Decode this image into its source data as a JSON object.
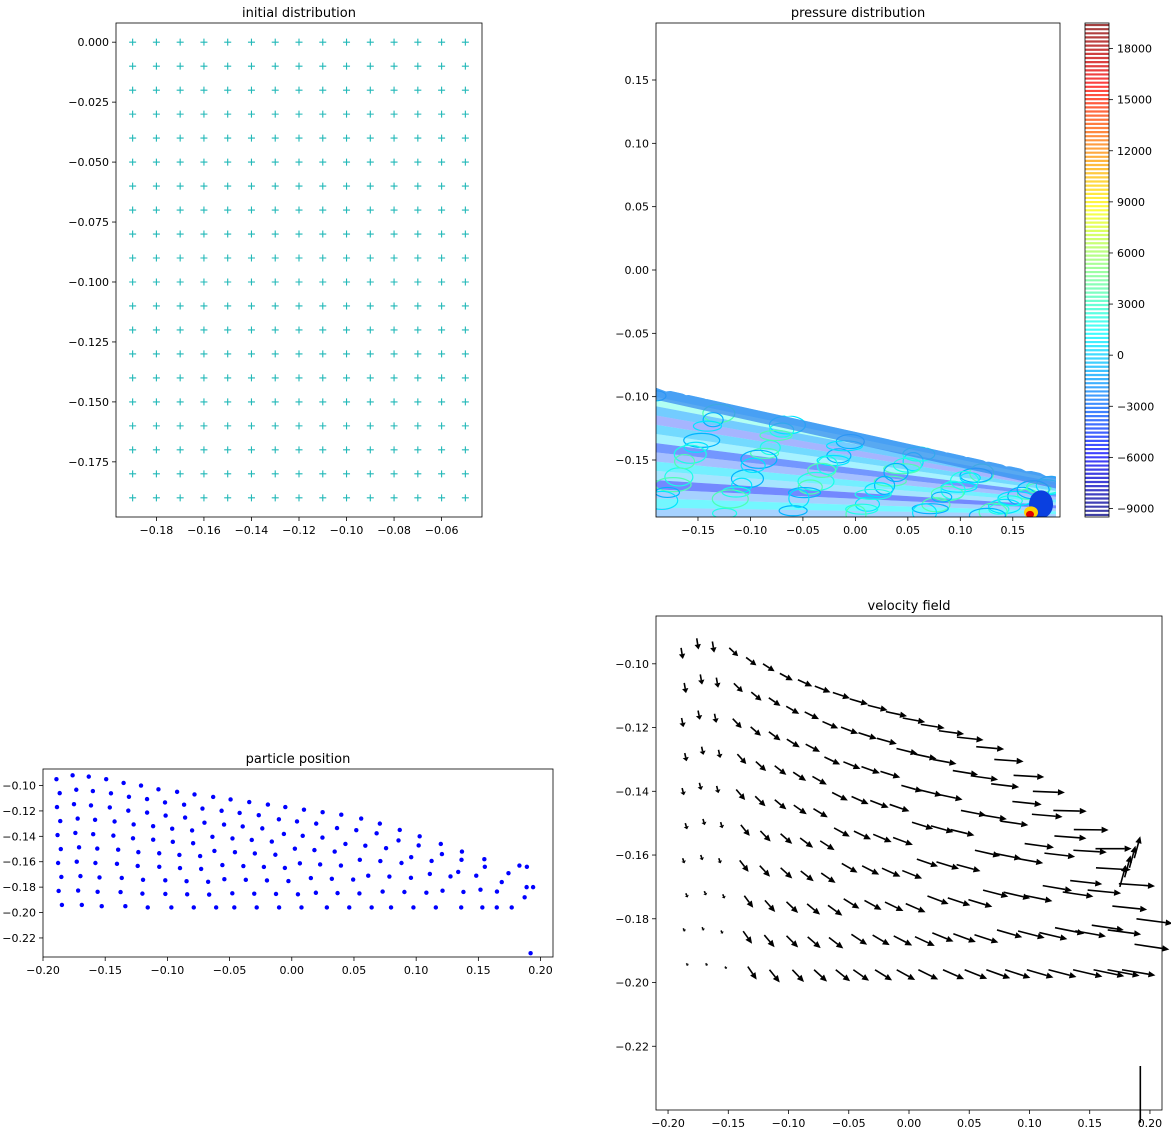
{
  "chart_data": [
    {
      "type": "scatter",
      "title": "initial distribution",
      "marker": "plus",
      "color": "#22b8b8",
      "grid": false,
      "xlim": [
        -0.197,
        -0.043
      ],
      "ylim": [
        -0.198,
        0.008
      ],
      "xticks": [
        -0.18,
        -0.16,
        -0.14,
        -0.12,
        -0.1,
        -0.08,
        -0.06
      ],
      "xtick_labels": [
        "−0.18",
        "−0.16",
        "−0.14",
        "−0.12",
        "−0.10",
        "−0.08",
        "−0.06"
      ],
      "yticks": [
        0.0,
        -0.025,
        -0.05,
        -0.075,
        -0.1,
        -0.125,
        -0.15,
        -0.175
      ],
      "ytick_labels": [
        "0.000",
        "−0.025",
        "−0.050",
        "−0.075",
        "−0.100",
        "−0.125",
        "−0.150",
        "−0.175"
      ],
      "grid_spec": {
        "x_start": -0.19,
        "x_step": 0.01,
        "x_count": 15,
        "y_start": 0.0,
        "y_step": -0.01,
        "y_count": 20
      }
    },
    {
      "type": "heatmap",
      "title": "pressure distribution",
      "colormap": "jet",
      "grid": false,
      "xlim": [
        -0.19,
        0.195
      ],
      "ylim": [
        -0.195,
        0.195
      ],
      "xticks": [
        -0.15,
        -0.1,
        -0.05,
        0.0,
        0.05,
        0.1,
        0.15
      ],
      "xtick_labels": [
        "−0.15",
        "−0.10",
        "−0.05",
        "0.00",
        "0.05",
        "0.10",
        "0.15"
      ],
      "yticks": [
        0.15,
        0.1,
        0.05,
        0.0,
        -0.05,
        -0.1,
        -0.15
      ],
      "ytick_labels": [
        "0.15",
        "0.10",
        "0.05",
        "0.00",
        "−0.05",
        "−0.10",
        "−0.15"
      ],
      "fluid_top_left": [
        -0.19,
        -0.093
      ],
      "fluid_top_right": [
        0.19,
        -0.163
      ],
      "colorbar": {
        "min": -9500,
        "max": 19500,
        "ticks": [
          18000,
          15000,
          12000,
          9000,
          6000,
          3000,
          0,
          -3000,
          -6000,
          -9000
        ],
        "tick_labels": [
          "18000",
          "15000",
          "12000",
          "9000",
          "6000",
          "3000",
          "0",
          "−3000",
          "−6000",
          "−9000"
        ]
      }
    },
    {
      "type": "scatter",
      "title": "particle position",
      "marker": "dot",
      "color": "#0000ff",
      "grid": false,
      "xlim": [
        -0.2,
        0.21
      ],
      "ylim": [
        -0.235,
        -0.087
      ],
      "xticks": [
        -0.2,
        -0.15,
        -0.1,
        -0.05,
        0.0,
        0.05,
        0.1,
        0.15,
        0.2
      ],
      "xtick_labels": [
        "−0.20",
        "−0.15",
        "−0.10",
        "−0.05",
        "0.00",
        "0.05",
        "0.10",
        "0.15",
        "0.20"
      ],
      "yticks": [
        -0.1,
        -0.12,
        -0.14,
        -0.16,
        -0.18,
        -0.2,
        -0.22
      ],
      "ytick_labels": [
        "−0.10",
        "−0.12",
        "−0.14",
        "−0.16",
        "−0.18",
        "−0.20",
        "−0.22"
      ],
      "cols": [
        {
          "xt": -0.188,
          "xb": -0.186,
          "yt": -0.095,
          "yb": -0.194,
          "n": 10
        },
        {
          "xt": -0.175,
          "xb": -0.17,
          "yt": -0.092,
          "yb": -0.194,
          "n": 10
        },
        {
          "xt": -0.162,
          "xb": -0.154,
          "yt": -0.093,
          "yb": -0.195,
          "n": 10
        },
        {
          "xt": -0.148,
          "xb": -0.135,
          "yt": -0.095,
          "yb": -0.195,
          "n": 10
        },
        {
          "xt": -0.134,
          "xb": -0.117,
          "yt": -0.098,
          "yb": -0.196,
          "n": 10
        },
        {
          "xt": -0.12,
          "xb": -0.098,
          "yt": -0.1,
          "yb": -0.196,
          "n": 10
        },
        {
          "xt": -0.106,
          "xb": -0.08,
          "yt": -0.103,
          "yb": -0.196,
          "n": 10
        },
        {
          "xt": -0.091,
          "xb": -0.062,
          "yt": -0.105,
          "yb": -0.196,
          "n": 10
        },
        {
          "xt": -0.077,
          "xb": -0.045,
          "yt": -0.107,
          "yb": -0.196,
          "n": 9
        },
        {
          "xt": -0.062,
          "xb": -0.027,
          "yt": -0.109,
          "yb": -0.196,
          "n": 9
        },
        {
          "xt": -0.048,
          "xb": -0.009,
          "yt": -0.111,
          "yb": -0.196,
          "n": 9
        },
        {
          "xt": -0.033,
          "xb": 0.009,
          "yt": -0.113,
          "yb": -0.196,
          "n": 9
        },
        {
          "xt": -0.018,
          "xb": 0.027,
          "yt": -0.115,
          "yb": -0.196,
          "n": 8
        },
        {
          "xt": -0.004,
          "xb": 0.045,
          "yt": -0.117,
          "yb": -0.196,
          "n": 8
        },
        {
          "xt": 0.011,
          "xb": 0.063,
          "yt": -0.119,
          "yb": -0.196,
          "n": 8
        },
        {
          "xt": 0.026,
          "xb": 0.081,
          "yt": -0.121,
          "yb": -0.196,
          "n": 7
        },
        {
          "xt": 0.041,
          "xb": 0.099,
          "yt": -0.123,
          "yb": -0.196,
          "n": 7
        },
        {
          "xt": 0.057,
          "xb": 0.117,
          "yt": -0.126,
          "yb": -0.196,
          "n": 7
        },
        {
          "xt": 0.072,
          "xb": 0.135,
          "yt": -0.13,
          "yb": -0.196,
          "n": 6
        },
        {
          "xt": 0.088,
          "xb": 0.152,
          "yt": -0.135,
          "yb": -0.196,
          "n": 6
        },
        {
          "xt": 0.104,
          "xb": 0.166,
          "yt": -0.14,
          "yb": -0.196,
          "n": 5
        },
        {
          "xt": 0.121,
          "xb": 0.178,
          "yt": -0.146,
          "yb": -0.196,
          "n": 5
        },
        {
          "xt": 0.138,
          "xb": 0.186,
          "yt": -0.152,
          "yb": -0.188,
          "n": 4
        },
        {
          "xt": 0.156,
          "xb": 0.19,
          "yt": -0.158,
          "yb": -0.18,
          "n": 3
        }
      ],
      "extra_points": [
        [
          0.192,
          -0.232
        ],
        [
          0.194,
          -0.18
        ],
        [
          0.189,
          -0.164
        ],
        [
          0.183,
          -0.163
        ]
      ]
    },
    {
      "type": "quiver",
      "title": "velocity field",
      "color": "#000000",
      "grid": false,
      "xlim": [
        -0.21,
        0.21
      ],
      "ylim": [
        -0.24,
        -0.085
      ],
      "xticks": [
        -0.2,
        -0.15,
        -0.1,
        -0.05,
        0.0,
        0.05,
        0.1,
        0.15,
        0.2
      ],
      "xtick_labels": [
        "−0.20",
        "−0.15",
        "−0.10",
        "−0.05",
        "0.00",
        "0.05",
        "0.10",
        "0.15",
        "0.20"
      ],
      "yticks": [
        -0.1,
        -0.12,
        -0.14,
        -0.16,
        -0.18,
        -0.2,
        -0.22
      ],
      "ytick_labels": [
        "−0.10",
        "−0.12",
        "−0.14",
        "−0.16",
        "−0.18",
        "−0.20",
        "−0.22"
      ],
      "same_particles_as": "particle position",
      "outlier_arrow": {
        "x": 0.192,
        "y": -0.232,
        "dx": 0.0,
        "dy": 0.008
      }
    }
  ]
}
